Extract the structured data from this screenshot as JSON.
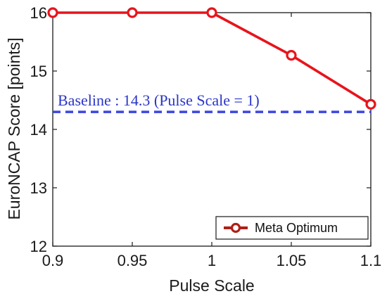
{
  "chart_data": {
    "type": "line",
    "x": [
      0.9,
      0.95,
      1,
      1.05,
      1.1
    ],
    "series": [
      {
        "name": "Meta Optimum",
        "values": [
          16,
          16,
          16,
          15.27,
          14.43
        ],
        "color": "#e8141b",
        "marker": "circle"
      }
    ],
    "baseline": {
      "value": 14.3,
      "label": "Baseline : 14.3 (Pulse Scale = 1)",
      "color": "#3b46e0",
      "style": "dashed"
    },
    "xlabel": "Pulse Scale",
    "ylabel": "EuroNCAP Score [points]",
    "xlim": [
      0.9,
      1.1
    ],
    "ylim": [
      12,
      16
    ],
    "xticks": [
      0.9,
      0.95,
      1,
      1.05,
      1.1
    ],
    "xtick_labels": [
      "0.9",
      "0.95",
      "1",
      "1.05",
      "1.1"
    ],
    "yticks": [
      12,
      13,
      14,
      15,
      16
    ],
    "ytick_labels": [
      "12",
      "13",
      "14",
      "15",
      "16"
    ],
    "grid": false,
    "legend_position": "bottom-right",
    "legend": [
      "Meta Optimum"
    ]
  }
}
